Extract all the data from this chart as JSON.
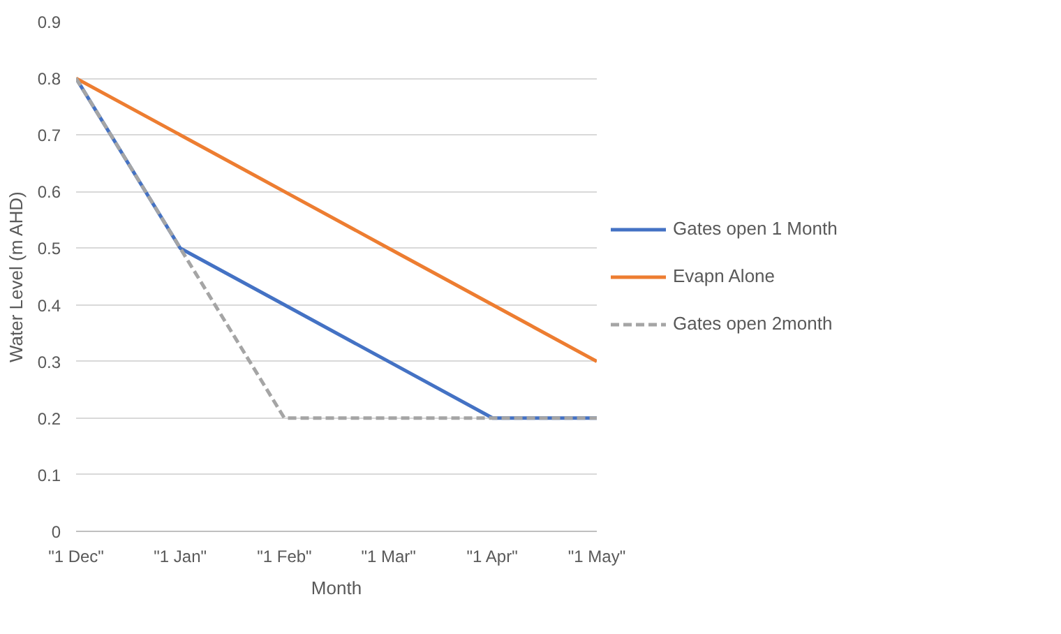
{
  "chart_data": {
    "type": "line",
    "xlabel": "Month",
    "ylabel": "Water Level (m AHD)",
    "categories": [
      "\"1 Dec\"",
      "\"1 Jan\"",
      "\"1 Feb\"",
      "\"1 Mar\"",
      "\"1 Apr\"",
      "\"1 May\""
    ],
    "series": [
      {
        "name": "Gates open 1 Month",
        "color": "#4472c4",
        "values": [
          0.8,
          0.5,
          0.4,
          0.3,
          0.2,
          0.2
        ]
      },
      {
        "name": "Evapn Alone",
        "color": "#ed7d31",
        "values": [
          0.8,
          0.7,
          0.6,
          0.5,
          0.4,
          0.3
        ]
      },
      {
        "name": "Gates open 2month",
        "color": "#a5a5a5",
        "line_style": "dashed",
        "values": [
          0.8,
          0.5,
          0.2,
          0.2,
          0.2,
          0.2
        ]
      }
    ],
    "ylim": [
      0,
      0.9
    ],
    "yticks": [
      0,
      0.1,
      0.2,
      0.3,
      0.4,
      0.5,
      0.6,
      0.7,
      0.8,
      0.9
    ],
    "grid": "y",
    "legend": "right",
    "marker": "none",
    "line_style": "solid"
  }
}
